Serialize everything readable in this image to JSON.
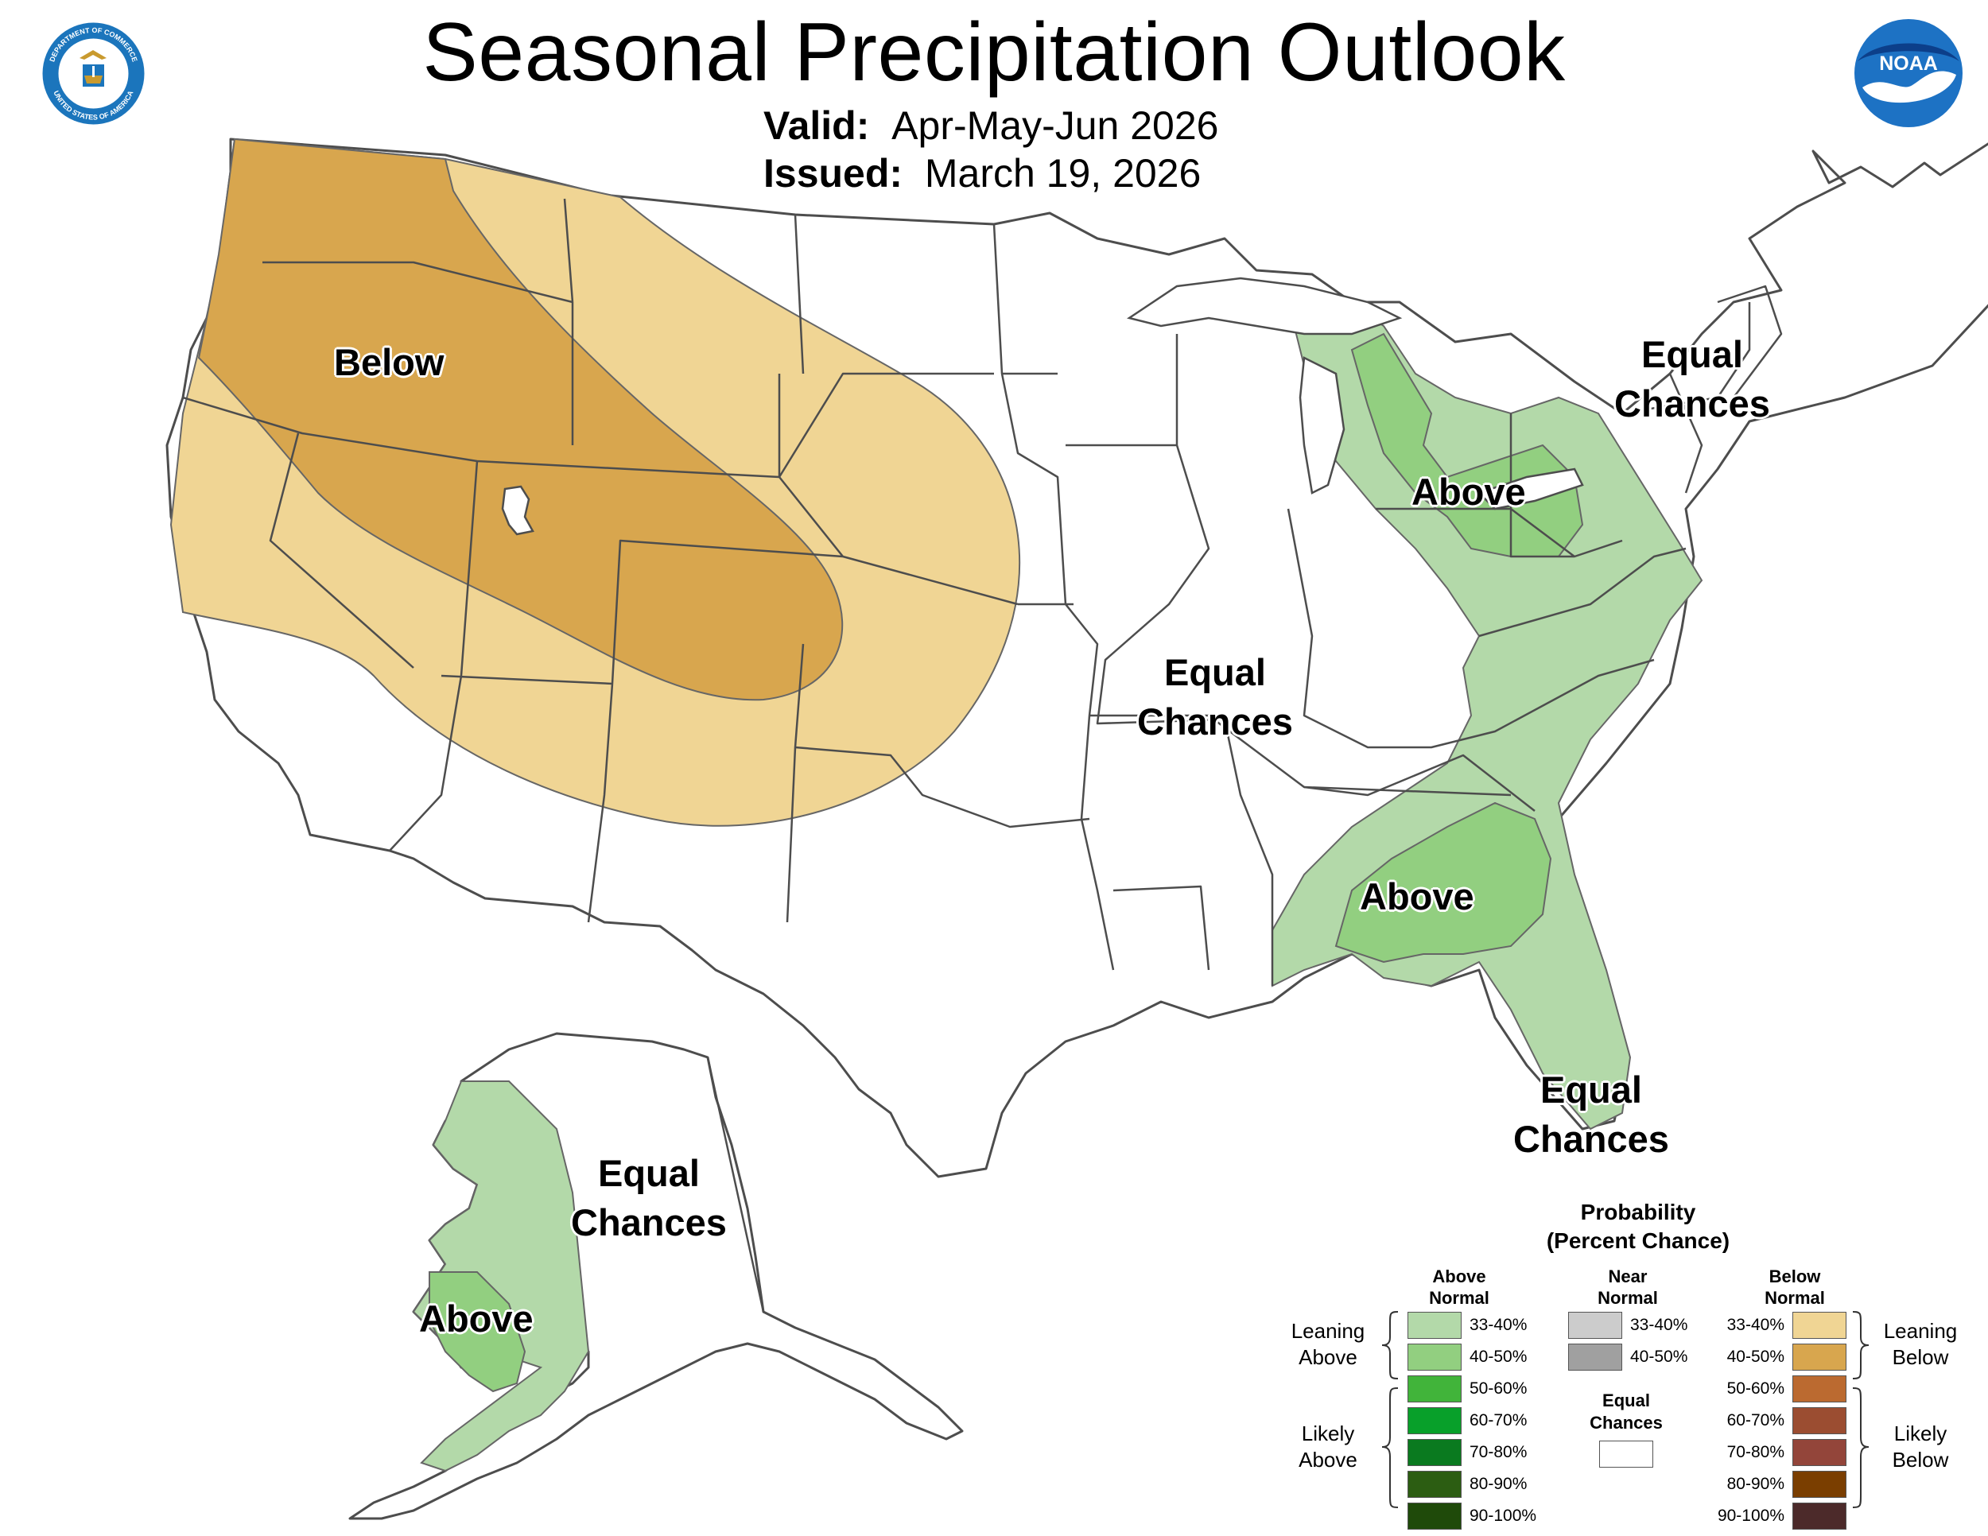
{
  "header": {
    "title": "Seasonal Precipitation Outlook",
    "valid_label": "Valid:",
    "valid_value": "Apr-May-Jun 2026",
    "issued_label": "Issued:",
    "issued_value": "March 19, 2026"
  },
  "logos": {
    "commerce_seal_ring_top": "DEPARTMENT OF COMMERCE",
    "commerce_seal_ring_bottom": "UNITED STATES OF AMERICA",
    "noaa_text": "NOAA"
  },
  "colors": {
    "leaning_below": "#f0d594",
    "below_40_50": "#d8a64e",
    "leaning_above": "#b3d9a9",
    "above_40_50": "#92cf80",
    "state_border": "#4d4d4d",
    "noaa_blue": "#1d72c4"
  },
  "region_labels": {
    "below_west": "Below",
    "equal_central": [
      "Equal",
      "Chances"
    ],
    "equal_northeast": [
      "Equal",
      "Chances"
    ],
    "above_great_lakes": "Above",
    "above_southeast": "Above",
    "equal_florida": [
      "Equal",
      "Chances"
    ],
    "equal_alaska": [
      "Equal",
      "Chances"
    ],
    "above_alaska": "Above"
  },
  "legend": {
    "title": "Probability",
    "subtitle": "(Percent Chance)",
    "columns": {
      "above": [
        "Above",
        "Normal"
      ],
      "near": [
        "Near",
        "Normal"
      ],
      "below": [
        "Below",
        "Normal"
      ]
    },
    "above_rows": [
      {
        "range": "33-40%",
        "color": "#b3d9a9"
      },
      {
        "range": "40-50%",
        "color": "#92cf80"
      },
      {
        "range": "50-60%",
        "color": "#41b43a"
      },
      {
        "range": "60-70%",
        "color": "#08a02a"
      },
      {
        "range": "70-80%",
        "color": "#0a7a1f"
      },
      {
        "range": "80-90%",
        "color": "#2c5d12"
      },
      {
        "range": "90-100%",
        "color": "#1f4a0a"
      }
    ],
    "near_rows": [
      {
        "range": "33-40%",
        "color": "#cccccc"
      },
      {
        "range": "40-50%",
        "color": "#a0a0a0"
      }
    ],
    "below_rows": [
      {
        "range": "33-40%",
        "color": "#f0d594"
      },
      {
        "range": "40-50%",
        "color": "#d8a64e"
      },
      {
        "range": "50-60%",
        "color": "#bb6a30"
      },
      {
        "range": "60-70%",
        "color": "#9b4d31"
      },
      {
        "range": "70-80%",
        "color": "#93453a"
      },
      {
        "range": "80-90%",
        "color": "#7a3e00"
      },
      {
        "range": "90-100%",
        "color": "#4c2a2a"
      }
    ],
    "equal_chances": [
      "Equal",
      "Chances"
    ],
    "side_labels": {
      "leaning_above": [
        "Leaning",
        "Above"
      ],
      "likely_above": [
        "Likely",
        "Above"
      ],
      "leaning_below": [
        "Leaning",
        "Below"
      ],
      "likely_below": [
        "Likely",
        "Below"
      ]
    }
  }
}
